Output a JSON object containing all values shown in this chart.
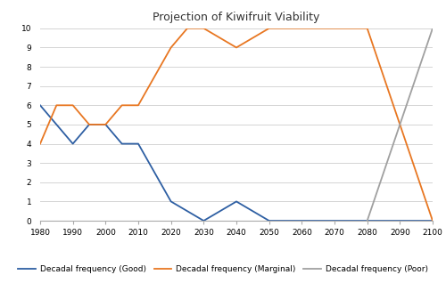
{
  "title": "Projection of Kiwifruit Viability",
  "good": {
    "label": "Decadal frequency (Good)",
    "color": "#2E5FA3",
    "x": [
      1980,
      1985,
      1990,
      1995,
      2000,
      2005,
      2010,
      2020,
      2030,
      2040,
      2050,
      2060,
      2070,
      2080,
      2090,
      2100
    ],
    "y": [
      6,
      5,
      4,
      5,
      5,
      4,
      4,
      1,
      0,
      1,
      0,
      0,
      0,
      0,
      0,
      0
    ]
  },
  "marginal": {
    "label": "Decadal frequency (Marginal)",
    "color": "#E87722",
    "x": [
      1980,
      1985,
      1990,
      1995,
      2000,
      2005,
      2010,
      2020,
      2025,
      2030,
      2040,
      2050,
      2060,
      2070,
      2080,
      2090,
      2100
    ],
    "y": [
      4,
      6,
      6,
      5,
      5,
      6,
      6,
      9,
      10,
      10,
      9,
      10,
      10,
      10,
      10,
      5,
      0
    ]
  },
  "poor": {
    "label": "Decadal frequency (Poor)",
    "color": "#A0A0A0",
    "x": [
      2080,
      2090,
      2100
    ],
    "y": [
      0,
      5,
      10
    ]
  },
  "xlim": [
    1980,
    2100
  ],
  "ylim": [
    0,
    10
  ],
  "xticks": [
    1980,
    1990,
    2000,
    2010,
    2020,
    2030,
    2040,
    2050,
    2060,
    2070,
    2080,
    2090,
    2100
  ],
  "yticks": [
    0,
    1,
    2,
    3,
    4,
    5,
    6,
    7,
    8,
    9,
    10
  ],
  "background_color": "#ffffff",
  "grid_color": "#d4d4d4",
  "title_fontsize": 9,
  "tick_fontsize": 6.5,
  "legend_fontsize": 6.5,
  "linewidth": 1.3
}
